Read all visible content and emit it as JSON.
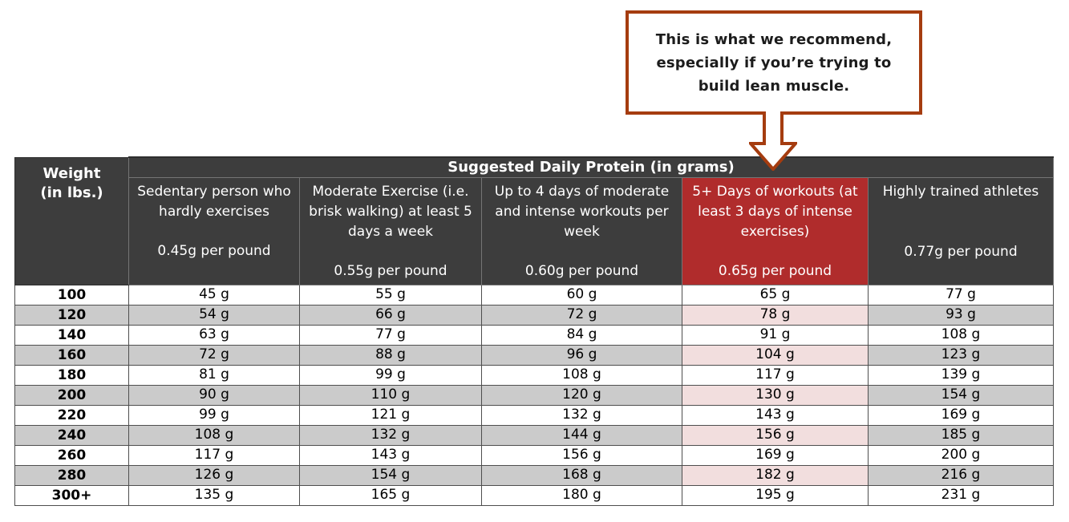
{
  "colors": {
    "callout_border": "#A53C0F",
    "header_bg": "#3D3D3D",
    "highlight_red": "#B02C2C",
    "highlight_pink": "#F2DEDE",
    "row_gray": "#CBCBCB"
  },
  "callout": {
    "lines": [
      "This is what we recommend,",
      "especially if you’re trying to",
      "build lean muscle."
    ]
  },
  "table": {
    "title": "Suggested Daily Protein (in grams)",
    "weight_header_line1": "Weight",
    "weight_header_line2": "(in lbs.)",
    "columns": [
      {
        "name": "Sedentary person who hardly exercises",
        "rate": "0.45g per pound",
        "highlight": false
      },
      {
        "name": "Moderate Exercise (i.e. brisk walking) at least 5 days a week",
        "rate": "0.55g per pound",
        "highlight": false
      },
      {
        "name": "Up to 4 days of moderate and intense workouts per week",
        "rate": "0.60g per pound",
        "highlight": false
      },
      {
        "name": "5+ Days of workouts (at least 3 days of intense exercises)",
        "rate": "0.65g per pound",
        "highlight": true
      },
      {
        "name": "Highly trained athletes",
        "rate": "0.77g per pound",
        "highlight": false
      }
    ],
    "rows": [
      {
        "weight": "100",
        "values": [
          "45 g",
          "55 g",
          "60 g",
          "65 g",
          "77 g"
        ]
      },
      {
        "weight": "120",
        "values": [
          "54 g",
          "66 g",
          "72 g",
          "78 g",
          "93 g"
        ]
      },
      {
        "weight": "140",
        "values": [
          "63 g",
          "77 g",
          "84 g",
          "91 g",
          "108 g"
        ]
      },
      {
        "weight": "160",
        "values": [
          "72 g",
          "88 g",
          "96 g",
          "104 g",
          "123 g"
        ]
      },
      {
        "weight": "180",
        "values": [
          "81 g",
          "99 g",
          "108 g",
          "117 g",
          "139 g"
        ]
      },
      {
        "weight": "200",
        "values": [
          "90 g",
          "110 g",
          "120 g",
          "130 g",
          "154 g"
        ]
      },
      {
        "weight": "220",
        "values": [
          "99 g",
          "121 g",
          "132 g",
          "143 g",
          "169 g"
        ]
      },
      {
        "weight": "240",
        "values": [
          "108 g",
          "132 g",
          "144 g",
          "156 g",
          "185 g"
        ]
      },
      {
        "weight": "260",
        "values": [
          "117 g",
          "143 g",
          "156 g",
          "169 g",
          "200 g"
        ]
      },
      {
        "weight": "280",
        "values": [
          "126 g",
          "154 g",
          "168 g",
          "182 g",
          "216 g"
        ]
      },
      {
        "weight": "300+",
        "values": [
          "135 g",
          "165 g",
          "180 g",
          "195 g",
          "231 g"
        ]
      }
    ]
  },
  "chart_data": {
    "type": "table",
    "title": "Suggested Daily Protein (in grams)",
    "row_header": "Weight (in lbs.)",
    "column_headers": [
      "Sedentary person who hardly exercises — 0.45g per pound",
      "Moderate Exercise (i.e. brisk walking) at least 5 days a week — 0.55g per pound",
      "Up to 4 days of moderate and intense workouts per week — 0.60g per pound",
      "5+ Days of workouts (at least 3 days of intense exercises) — 0.65g per pound",
      "Highly trained athletes — 0.77g per pound"
    ],
    "rates_g_per_lb": [
      0.45,
      0.55,
      0.6,
      0.65,
      0.77
    ],
    "weights_lbs": [
      100,
      120,
      140,
      160,
      180,
      200,
      220,
      240,
      260,
      280,
      300
    ],
    "grams": [
      [
        45,
        55,
        60,
        65,
        77
      ],
      [
        54,
        66,
        72,
        78,
        93
      ],
      [
        63,
        77,
        84,
        91,
        108
      ],
      [
        72,
        88,
        96,
        104,
        123
      ],
      [
        81,
        99,
        108,
        117,
        139
      ],
      [
        90,
        110,
        120,
        130,
        154
      ],
      [
        99,
        121,
        132,
        143,
        169
      ],
      [
        108,
        132,
        144,
        156,
        185
      ],
      [
        117,
        143,
        156,
        169,
        200
      ],
      [
        126,
        154,
        168,
        182,
        216
      ],
      [
        135,
        165,
        180,
        195,
        231
      ]
    ],
    "annotation": "This is what we recommend, especially if you’re trying to build lean muscle. (points to the 5+ Days of workouts column)",
    "highlighted_column_index": 3
  }
}
